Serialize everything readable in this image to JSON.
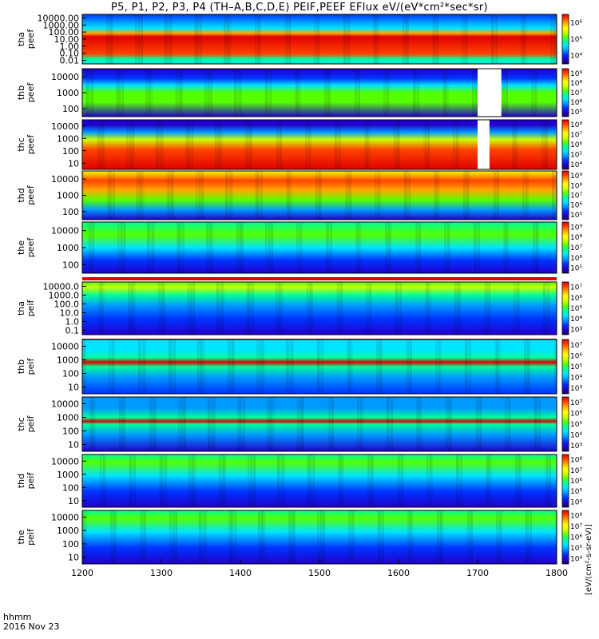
{
  "title": "P5, P1, P2, P3, P4 (TH–A,B,C,D,E) PEIF,PEEF EFlux eV/(eV*cm²*sec*sr)",
  "footer": {
    "line1": "hhmm",
    "line2": "2016 Nov 23"
  },
  "colorbar_units": "[eV/(cm²-s-sr-eV)]",
  "colorbar_label_repeat": "(eV/(cm2-s-sr-eV))",
  "chart_data": {
    "type": "heatmap",
    "x": {
      "ticks": [
        1200,
        1300,
        1400,
        1500,
        1600,
        1700,
        1800
      ],
      "range": [
        1200,
        1800
      ]
    },
    "colormap": [
      "#1a0066",
      "#2200cc",
      "#0033ff",
      "#0099ff",
      "#00e5ff",
      "#00ff99",
      "#55ff00",
      "#ccff00",
      "#ffff00",
      "#ffaa00",
      "#ff4400",
      "#e00000"
    ],
    "panels": [
      {
        "probe": "tha",
        "product": "peef",
        "yticks": [
          "10000.00",
          "1000.00",
          "100.00",
          "10.00",
          "1.00",
          "0.10",
          "0.01"
        ],
        "colorbar_ticks": [
          "10⁶",
          "10⁵",
          "10⁴"
        ],
        "data_gaps": []
      },
      {
        "probe": "thb",
        "product": "peef",
        "yticks": [
          "10000",
          "1000",
          "100"
        ],
        "colorbar_ticks": [
          "10⁹",
          "10⁸",
          "10⁷",
          "10⁶",
          "10⁵"
        ],
        "data_gaps": [
          [
            1700,
            1730
          ]
        ]
      },
      {
        "probe": "thc",
        "product": "peef",
        "yticks": [
          "10000",
          "1000",
          "100",
          "10"
        ],
        "colorbar_ticks": [
          "10⁸",
          "10⁷",
          "10⁶",
          "10⁵",
          "10⁴"
        ],
        "data_gaps": [
          [
            1700,
            1715
          ]
        ]
      },
      {
        "probe": "thd",
        "product": "peef",
        "yticks": [
          "10000",
          "1000",
          "100"
        ],
        "colorbar_ticks": [
          "10⁹",
          "10⁸",
          "10⁷",
          "10⁶",
          "10⁵"
        ],
        "data_gaps": []
      },
      {
        "probe": "the",
        "product": "peef",
        "yticks": [
          "10000",
          "1000",
          "100"
        ],
        "colorbar_ticks": [
          "10⁹",
          "10⁸",
          "10⁷",
          "10⁶",
          "10⁵"
        ],
        "data_gaps": []
      },
      {
        "probe": "tha",
        "product": "peif",
        "yticks": [
          "10000.0",
          "1000.0",
          "100.0",
          "10.0",
          "1.0",
          "0.1"
        ],
        "colorbar_ticks": [
          "10⁷",
          "10⁶",
          "10⁵",
          "10⁴",
          "10³"
        ],
        "data_gaps": []
      },
      {
        "probe": "thb",
        "product": "peif",
        "yticks": [
          "10000",
          "1000",
          "100",
          "10"
        ],
        "colorbar_ticks": [
          "10⁷",
          "10⁶",
          "10⁵",
          "10⁴",
          "10³"
        ],
        "data_gaps": []
      },
      {
        "probe": "thc",
        "product": "peif",
        "yticks": [
          "10000",
          "1000",
          "100",
          "10"
        ],
        "colorbar_ticks": [
          "10⁷",
          "10⁶",
          "10⁵",
          "10⁴",
          "10³"
        ],
        "data_gaps": []
      },
      {
        "probe": "thd",
        "product": "peif",
        "yticks": [
          "10000",
          "1000",
          "100",
          "10"
        ],
        "colorbar_ticks": [
          "10⁸",
          "10⁷",
          "10⁶",
          "10⁵",
          "10⁴"
        ],
        "data_gaps": []
      },
      {
        "probe": "the",
        "product": "peif",
        "yticks": [
          "10000",
          "1000",
          "100",
          "10"
        ],
        "colorbar_ticks": [
          "10⁸",
          "10⁷",
          "10⁶",
          "10⁵",
          "10⁴"
        ],
        "data_gaps": []
      }
    ]
  }
}
